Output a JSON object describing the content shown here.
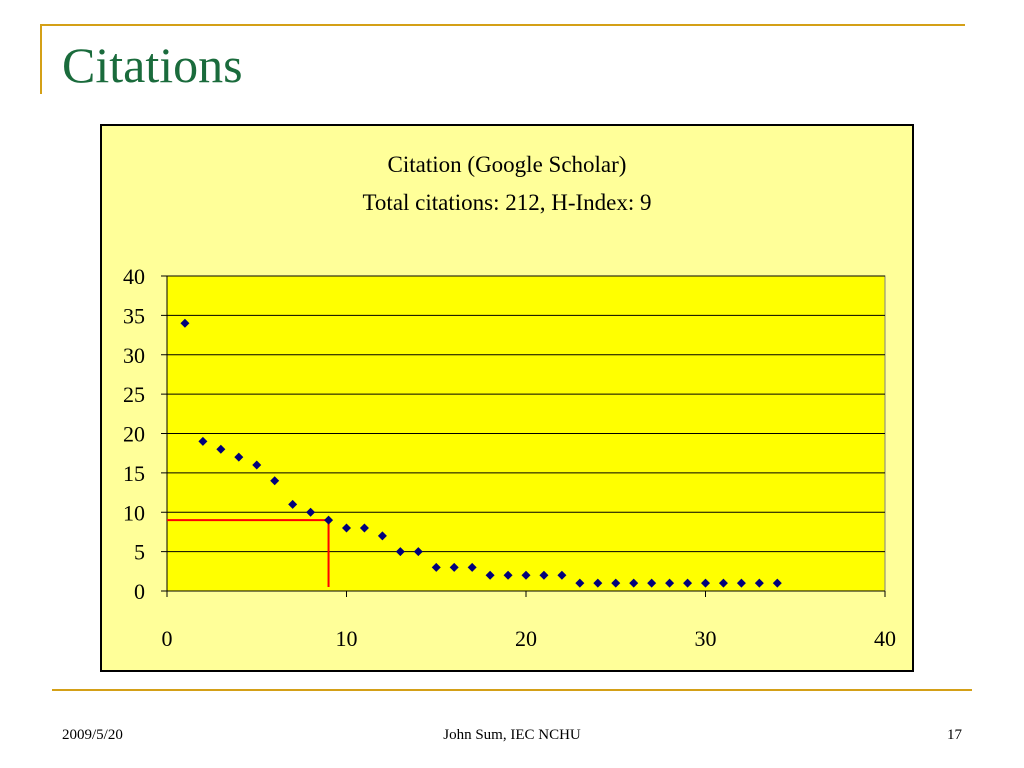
{
  "slide": {
    "title": "Citations",
    "footer": {
      "date": "2009/5/20",
      "author": "John Sum, IEC NCHU",
      "page": "17"
    }
  },
  "colors": {
    "title": "#1a6b3c",
    "frame": "#d4a017",
    "chart_background": "#ffff99",
    "plot_background": "#ffff00",
    "marker": "#00007a",
    "h_index_line": "#ff0000"
  },
  "chart_data": {
    "type": "scatter",
    "title": "Citation (Google Scholar)",
    "subtitle": "Total citations: 212, H-Index: 9",
    "xlim": [
      0,
      40
    ],
    "ylim": [
      0,
      40
    ],
    "x_ticks": [
      0,
      10,
      20,
      30,
      40
    ],
    "y_ticks": [
      0,
      5,
      10,
      15,
      20,
      25,
      30,
      35,
      40
    ],
    "grid": "horizontal",
    "marker": "diamond",
    "h_index_marker": {
      "x": 9,
      "y": 9
    },
    "series": [
      {
        "x": [
          1,
          2,
          3,
          4,
          5,
          6,
          7,
          8,
          9,
          10,
          11,
          12,
          13,
          14,
          15,
          16,
          17,
          18,
          19,
          20,
          21,
          22,
          23,
          24,
          25,
          26,
          27,
          28,
          29,
          30,
          31,
          32,
          33,
          34
        ],
        "y": [
          34,
          19,
          18,
          17,
          16,
          14,
          11,
          10,
          9,
          8,
          8,
          7,
          5,
          5,
          3,
          3,
          3,
          2,
          2,
          2,
          2,
          2,
          1,
          1,
          1,
          1,
          1,
          1,
          1,
          1,
          1,
          1,
          1,
          1
        ]
      }
    ]
  }
}
